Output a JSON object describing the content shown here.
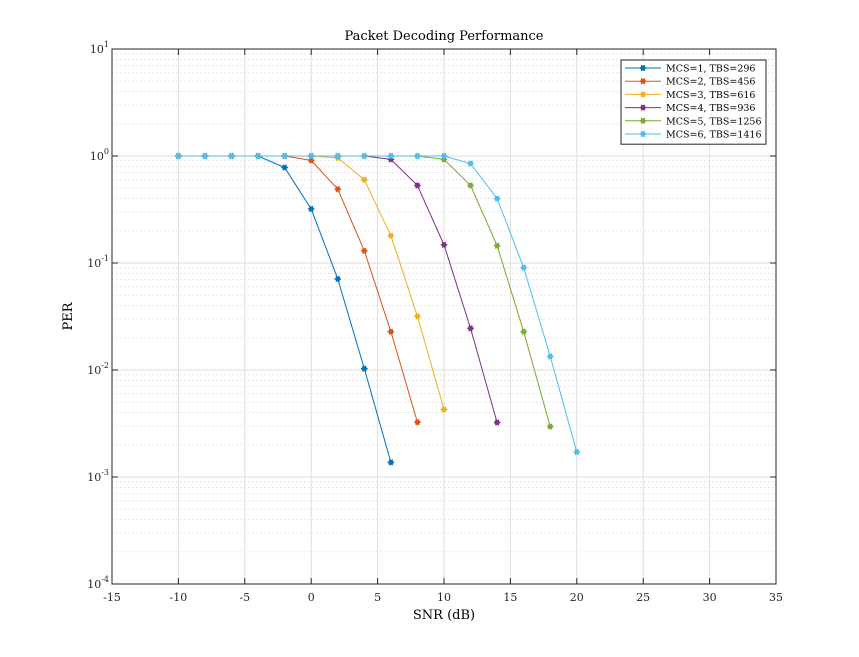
{
  "chart_data": {
    "type": "line",
    "title": "Packet Decoding Performance",
    "xlabel": "SNR (dB)",
    "ylabel": "PER",
    "xlim": [
      -15,
      35
    ],
    "ylim": [
      0.0001,
      10
    ],
    "yscale": "log",
    "grid": true,
    "minor_grid": true,
    "legend_position": "top-right",
    "x_ticks": [
      {
        "value": -15,
        "label": "-15"
      },
      {
        "value": -10,
        "label": "-10"
      },
      {
        "value": -5,
        "label": "-5"
      },
      {
        "value": 0,
        "label": "0"
      },
      {
        "value": 5,
        "label": "5"
      },
      {
        "value": 10,
        "label": "10"
      },
      {
        "value": 15,
        "label": "15"
      },
      {
        "value": 20,
        "label": "20"
      },
      {
        "value": 25,
        "label": "25"
      },
      {
        "value": 30,
        "label": "30"
      },
      {
        "value": 35,
        "label": "35"
      }
    ],
    "y_ticks": [
      {
        "value": 10,
        "base": "10",
        "exp": "1"
      },
      {
        "value": 1,
        "base": "10",
        "exp": "0"
      },
      {
        "value": 0.1,
        "base": "10",
        "exp": "-1"
      },
      {
        "value": 0.01,
        "base": "10",
        "exp": "-2"
      },
      {
        "value": 0.001,
        "base": "10",
        "exp": "-3"
      },
      {
        "value": 0.0001,
        "base": "10",
        "exp": "-4"
      }
    ],
    "series": [
      {
        "name": "MCS=1, TBS=296",
        "color": "#0072BD",
        "x": [
          -10,
          -8,
          -6,
          -4,
          -2,
          0,
          2,
          4,
          6
        ],
        "y": [
          1,
          1,
          1,
          1,
          0.78,
          0.32,
          0.071,
          0.0103,
          0.00137
        ]
      },
      {
        "name": "MCS=2, TBS=456",
        "color": "#D95319",
        "x": [
          -10,
          -8,
          -6,
          -4,
          -2,
          0,
          2,
          4,
          6,
          8
        ],
        "y": [
          1,
          1,
          1,
          1,
          1,
          0.91,
          0.49,
          0.13,
          0.0228,
          0.00325
        ]
      },
      {
        "name": "MCS=3, TBS=616",
        "color": "#EDB120",
        "x": [
          -10,
          -8,
          -6,
          -4,
          -2,
          0,
          2,
          4,
          6,
          8,
          10
        ],
        "y": [
          1,
          1,
          1,
          1,
          1,
          1,
          0.96,
          0.6,
          0.18,
          0.0318,
          0.00427
        ]
      },
      {
        "name": "MCS=4, TBS=936",
        "color": "#7E2F8E",
        "x": [
          -10,
          -8,
          -6,
          -4,
          -2,
          0,
          2,
          4,
          6,
          8,
          10,
          12,
          14
        ],
        "y": [
          1,
          1,
          1,
          1,
          1,
          1,
          1,
          1,
          0.93,
          0.53,
          0.148,
          0.0245,
          0.00323
        ]
      },
      {
        "name": "MCS=5, TBS=1256",
        "color": "#77AC30",
        "x": [
          -10,
          -8,
          -6,
          -4,
          -2,
          0,
          2,
          4,
          6,
          8,
          10,
          12,
          14,
          16,
          18
        ],
        "y": [
          1,
          1,
          1,
          1,
          1,
          1,
          1,
          1,
          1,
          1,
          0.93,
          0.53,
          0.145,
          0.0228,
          0.00296
        ]
      },
      {
        "name": "MCS=6, TBS=1416",
        "color": "#4DBEEE",
        "x": [
          -10,
          -8,
          -6,
          -4,
          -2,
          0,
          2,
          4,
          6,
          8,
          10,
          12,
          14,
          16,
          18,
          20
        ],
        "y": [
          1,
          1,
          1,
          1,
          1,
          1,
          1,
          1,
          1,
          1,
          1,
          0.85,
          0.4,
          0.0905,
          0.0134,
          0.00171
        ]
      }
    ]
  }
}
